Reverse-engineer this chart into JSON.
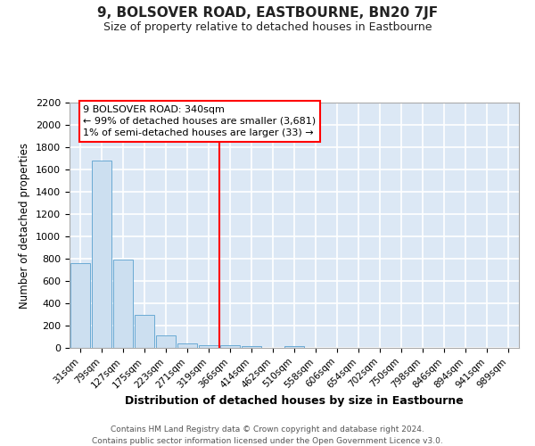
{
  "title": "9, BOLSOVER ROAD, EASTBOURNE, BN20 7JF",
  "subtitle": "Size of property relative to detached houses in Eastbourne",
  "xlabel": "Distribution of detached houses by size in Eastbourne",
  "ylabel": "Number of detached properties",
  "categories": [
    "31sqm",
    "79sqm",
    "127sqm",
    "175sqm",
    "223sqm",
    "271sqm",
    "319sqm",
    "366sqm",
    "414sqm",
    "462sqm",
    "510sqm",
    "558sqm",
    "606sqm",
    "654sqm",
    "702sqm",
    "750sqm",
    "798sqm",
    "846sqm",
    "894sqm",
    "941sqm",
    "989sqm"
  ],
  "values": [
    760,
    1680,
    790,
    300,
    115,
    40,
    25,
    25,
    20,
    0,
    20,
    0,
    0,
    0,
    0,
    0,
    0,
    0,
    0,
    0,
    0
  ],
  "bar_color": "#ccdff0",
  "bar_edge_color": "#6aaad4",
  "fig_background_color": "#ffffff",
  "plot_background_color": "#dce8f5",
  "grid_color": "#ffffff",
  "red_line_x": 6.48,
  "annotation_title": "9 BOLSOVER ROAD: 340sqm",
  "annotation_line2": "← 99% of detached houses are smaller (3,681)",
  "annotation_line3": "1% of semi-detached houses are larger (33) →",
  "ylim": [
    0,
    2200
  ],
  "yticks": [
    0,
    200,
    400,
    600,
    800,
    1000,
    1200,
    1400,
    1600,
    1800,
    2000,
    2200
  ],
  "footer_line1": "Contains HM Land Registry data © Crown copyright and database right 2024.",
  "footer_line2": "Contains public sector information licensed under the Open Government Licence v3.0."
}
